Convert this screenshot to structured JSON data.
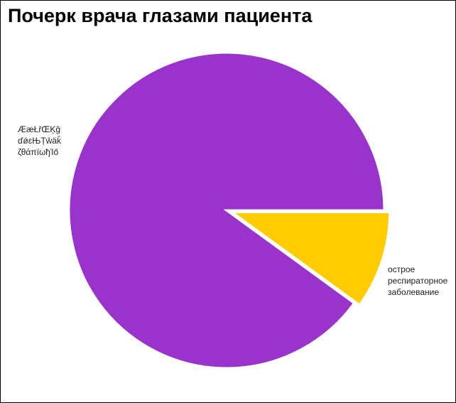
{
  "chart_data": {
    "type": "pie",
    "title": "Почерк врача глазами пациента",
    "categories": [
      "ÆæŁřŒĶĝ ďǿɛЊȚŵäǩ ζθάπïωђἸő",
      "острое респираторное заболевание"
    ],
    "values": [
      90,
      10
    ],
    "colors": [
      "#9933cc",
      "#ffcc00"
    ],
    "exploded": [
      false,
      true
    ]
  }
}
